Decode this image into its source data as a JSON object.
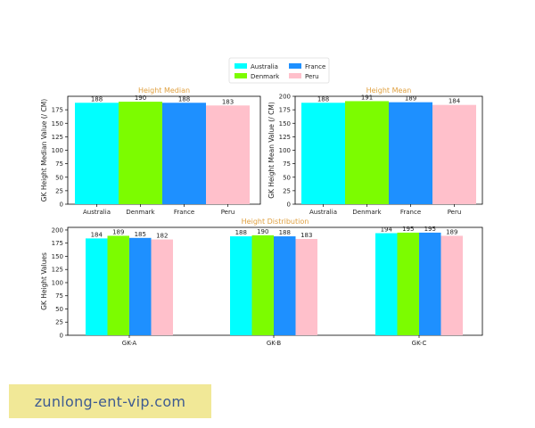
{
  "legend": {
    "placement": "top-center",
    "entries": [
      {
        "name": "Australia",
        "color": "#00ffff"
      },
      {
        "name": "Denmark",
        "color": "#7cfc00"
      },
      {
        "name": "France",
        "color": "#1e90ff"
      },
      {
        "name": "Peru",
        "color": "#ffc0cb"
      }
    ]
  },
  "watermark": {
    "text": "zunlong-ent-vip.com"
  },
  "chart_data": [
    {
      "type": "bar",
      "title": "Height Median",
      "title_color": "#e0a040",
      "xlabel": "",
      "ylabel": "GK Height Median Value (/ CM)",
      "categories": [
        "Australia",
        "Denmark",
        "France",
        "Peru"
      ],
      "values": [
        188,
        190,
        188,
        183
      ],
      "colors": [
        "#00ffff",
        "#7cfc00",
        "#1e90ff",
        "#ffc0cb"
      ],
      "ylim": [
        0,
        200
      ],
      "yticks": [
        0,
        25,
        50,
        75,
        100,
        125,
        150,
        175
      ],
      "grid": false
    },
    {
      "type": "bar",
      "title": "Height Mean",
      "title_color": "#e0a040",
      "xlabel": "",
      "ylabel": "GK Height Mean Value (/ CM)",
      "categories": [
        "Australia",
        "Denmark",
        "France",
        "Peru"
      ],
      "values": [
        188,
        191,
        189,
        184
      ],
      "colors": [
        "#00ffff",
        "#7cfc00",
        "#1e90ff",
        "#ffc0cb"
      ],
      "ylim": [
        0,
        200
      ],
      "yticks": [
        0,
        25,
        50,
        75,
        100,
        125,
        150,
        175,
        200
      ],
      "grid": false
    },
    {
      "type": "bar",
      "title": "Height Distribution",
      "title_color": "#e0a040",
      "xlabel": "",
      "ylabel": "GK Height Values",
      "categories": [
        "GK-A",
        "GK-B",
        "GK-C"
      ],
      "series": [
        {
          "name": "Australia",
          "color": "#00ffff",
          "values": [
            184,
            188,
            194
          ]
        },
        {
          "name": "Denmark",
          "color": "#7cfc00",
          "values": [
            189,
            190,
            195
          ]
        },
        {
          "name": "France",
          "color": "#1e90ff",
          "values": [
            185,
            188,
            195
          ]
        },
        {
          "name": "Peru",
          "color": "#ffc0cb",
          "values": [
            182,
            183,
            189
          ]
        }
      ],
      "ylim": [
        0,
        205
      ],
      "yticks": [
        0,
        25,
        50,
        75,
        100,
        125,
        150,
        175,
        200
      ],
      "grid": false
    }
  ]
}
